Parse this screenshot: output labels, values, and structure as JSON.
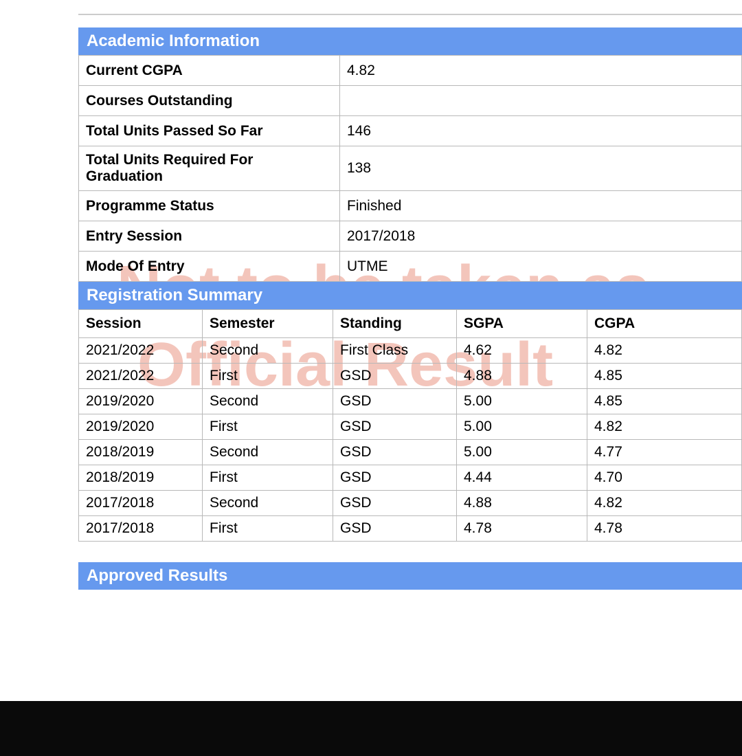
{
  "colors": {
    "section_header_bg": "#6699ee",
    "section_header_text": "#ffffff",
    "border": "#b8b8b8",
    "text": "#000000",
    "watermark": "rgba(220, 90, 60, 0.35)",
    "footer_bg": "#0a0a0a",
    "page_bg": "#ffffff"
  },
  "typography": {
    "header_fontsize": 24,
    "cell_fontsize": 21,
    "watermark_fontsize": 90
  },
  "watermark": {
    "line1": "Not to be taken as",
    "line2": "Official Result"
  },
  "academic_info": {
    "title": "Academic Information",
    "rows": [
      {
        "label": "Current CGPA",
        "value": "4.82"
      },
      {
        "label": "Courses Outstanding",
        "value": ""
      },
      {
        "label": "Total Units Passed So Far",
        "value": "146"
      },
      {
        "label": "Total Units Required For Graduation",
        "value": "138"
      },
      {
        "label": "Programme Status",
        "value": "Finished"
      },
      {
        "label": "Entry Session",
        "value": "2017/2018"
      },
      {
        "label": "Mode Of Entry",
        "value": "UTME"
      }
    ]
  },
  "registration_summary": {
    "title": "Registration Summary",
    "columns": [
      "Session",
      "Semester",
      "Standing",
      "SGPA",
      "CGPA"
    ],
    "column_widths": [
      "180px",
      "190px",
      "180px",
      "190px",
      "auto"
    ],
    "rows": [
      [
        "2021/2022",
        "Second",
        "First Class",
        "4.62",
        "4.82"
      ],
      [
        "2021/2022",
        "First",
        "GSD",
        "4.88",
        "4.85"
      ],
      [
        "2019/2020",
        "Second",
        "GSD",
        "5.00",
        "4.85"
      ],
      [
        "2019/2020",
        "First",
        "GSD",
        "5.00",
        "4.82"
      ],
      [
        "2018/2019",
        "Second",
        "GSD",
        "5.00",
        "4.77"
      ],
      [
        "2018/2019",
        "First",
        "GSD",
        "4.44",
        "4.70"
      ],
      [
        "2017/2018",
        "Second",
        "GSD",
        "4.88",
        "4.82"
      ],
      [
        "2017/2018",
        "First",
        "GSD",
        "4.78",
        "4.78"
      ]
    ]
  },
  "approved_results": {
    "title": "Approved Results"
  }
}
